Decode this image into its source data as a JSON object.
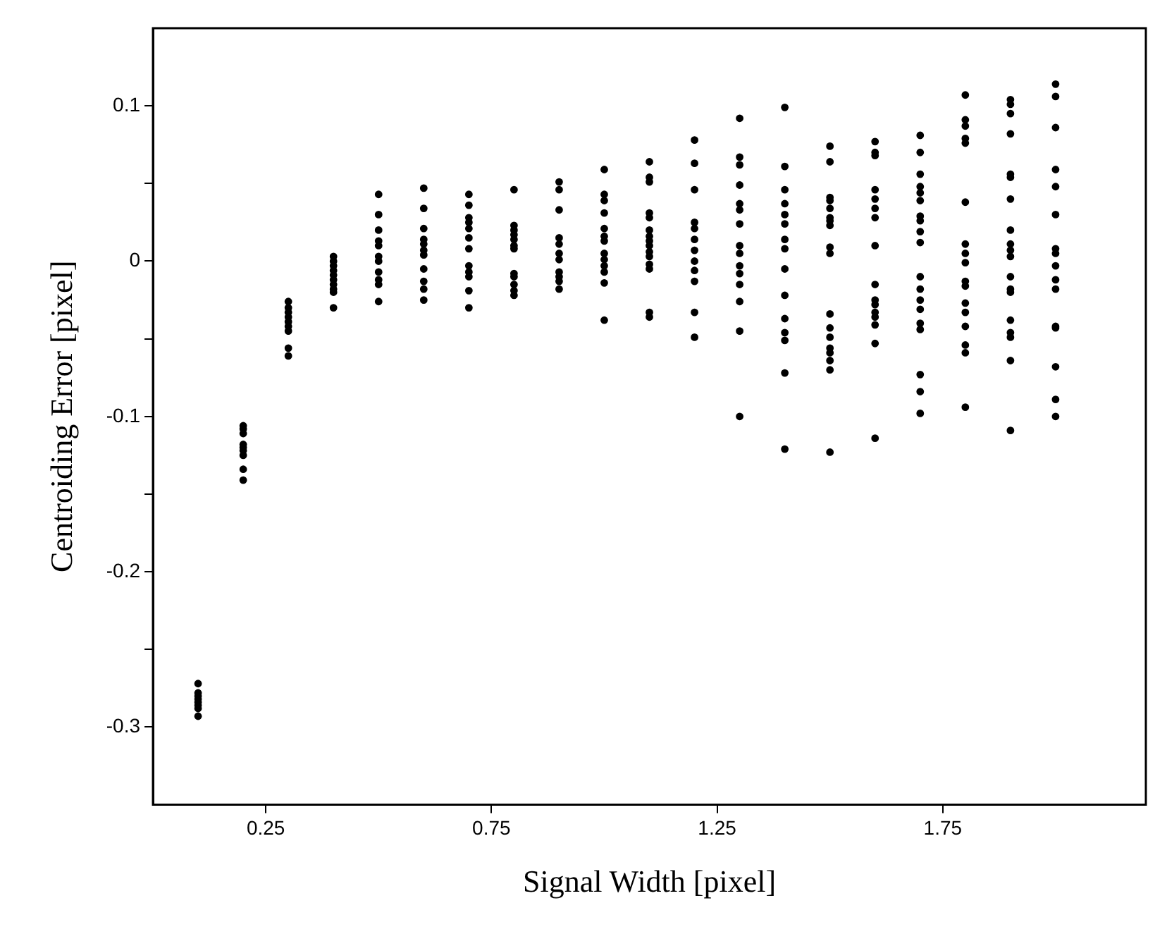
{
  "chart_data": {
    "type": "scatter",
    "xlabel": "Signal Width [pixel]",
    "ylabel": "Centroiding Error [pixel]",
    "xlim": [
      0,
      2.2
    ],
    "xticks": [
      0.25,
      0.75,
      1.25,
      1.75
    ],
    "ylim": [
      -0.35,
      0.15
    ],
    "yticks": [
      -0.3,
      {
        "value": -0.25,
        "label": null
      },
      -0.2,
      {
        "value": -0.15,
        "label": null
      },
      -0.1,
      {
        "value": -0.05,
        "label": null
      },
      0,
      {
        "value": 0.05,
        "label": null
      },
      0.1
    ],
    "grid": false,
    "legend": false,
    "marker": "circle",
    "series": [
      {
        "color": "#000000",
        "x": [
          0.1,
          0.1,
          0.1,
          0.1,
          0.1,
          0.1,
          0.1,
          0.1,
          0.2,
          0.2,
          0.2,
          0.2,
          0.2,
          0.2,
          0.2,
          0.2,
          0.2,
          0.3,
          0.3,
          0.3,
          0.3,
          0.3,
          0.3,
          0.3,
          0.3,
          0.3,
          0.4,
          0.4,
          0.4,
          0.4,
          0.4,
          0.4,
          0.4,
          0.4,
          0.4,
          0.4,
          0.5,
          0.5,
          0.5,
          0.5,
          0.5,
          0.5,
          0.5,
          0.5,
          0.5,
          0.5,
          0.5,
          0.6,
          0.6,
          0.6,
          0.6,
          0.6,
          0.6,
          0.6,
          0.6,
          0.6,
          0.6,
          0.6,
          0.7,
          0.7,
          0.7,
          0.7,
          0.7,
          0.7,
          0.7,
          0.7,
          0.7,
          0.7,
          0.7,
          0.7,
          0.8,
          0.8,
          0.8,
          0.8,
          0.8,
          0.8,
          0.8,
          0.8,
          0.8,
          0.8,
          0.8,
          0.8,
          0.9,
          0.9,
          0.9,
          0.9,
          0.9,
          0.9,
          0.9,
          0.9,
          0.9,
          0.9,
          0.9,
          1.0,
          1.0,
          1.0,
          1.0,
          1.0,
          1.0,
          1.0,
          1.0,
          1.0,
          1.0,
          1.0,
          1.0,
          1.0,
          1.1,
          1.1,
          1.1,
          1.1,
          1.1,
          1.1,
          1.1,
          1.1,
          1.1,
          1.1,
          1.1,
          1.1,
          1.1,
          1.1,
          1.1,
          1.2,
          1.2,
          1.2,
          1.2,
          1.2,
          1.2,
          1.2,
          1.2,
          1.2,
          1.2,
          1.2,
          1.2,
          1.3,
          1.3,
          1.3,
          1.3,
          1.3,
          1.3,
          1.3,
          1.3,
          1.3,
          1.3,
          1.3,
          1.3,
          1.3,
          1.3,
          1.3,
          1.4,
          1.4,
          1.4,
          1.4,
          1.4,
          1.4,
          1.4,
          1.4,
          1.4,
          1.4,
          1.4,
          1.4,
          1.4,
          1.4,
          1.4,
          1.5,
          1.5,
          1.5,
          1.5,
          1.5,
          1.5,
          1.5,
          1.5,
          1.5,
          1.5,
          1.5,
          1.5,
          1.5,
          1.5,
          1.5,
          1.5,
          1.5,
          1.5,
          1.6,
          1.6,
          1.6,
          1.6,
          1.6,
          1.6,
          1.6,
          1.6,
          1.6,
          1.6,
          1.6,
          1.6,
          1.6,
          1.6,
          1.6,
          1.6,
          1.7,
          1.7,
          1.7,
          1.7,
          1.7,
          1.7,
          1.7,
          1.7,
          1.7,
          1.7,
          1.7,
          1.7,
          1.7,
          1.7,
          1.7,
          1.7,
          1.7,
          1.7,
          1.7,
          1.8,
          1.8,
          1.8,
          1.8,
          1.8,
          1.8,
          1.8,
          1.8,
          1.8,
          1.8,
          1.8,
          1.8,
          1.8,
          1.8,
          1.8,
          1.8,
          1.8,
          1.9,
          1.9,
          1.9,
          1.9,
          1.9,
          1.9,
          1.9,
          1.9,
          1.9,
          1.9,
          1.9,
          1.9,
          1.9,
          1.9,
          1.9,
          1.9,
          1.9,
          1.9,
          1.9,
          2.0,
          2.0,
          2.0,
          2.0,
          2.0,
          2.0,
          2.0,
          2.0,
          2.0,
          2.0,
          2.0,
          2.0,
          2.0,
          2.0,
          2.0,
          2.0
        ],
        "values": [
          -0.272,
          -0.278,
          -0.28,
          -0.282,
          -0.284,
          -0.286,
          -0.288,
          -0.293,
          -0.106,
          -0.108,
          -0.111,
          -0.118,
          -0.12,
          -0.122,
          -0.125,
          -0.134,
          -0.141,
          -0.026,
          -0.03,
          -0.033,
          -0.036,
          -0.039,
          -0.042,
          -0.045,
          -0.056,
          -0.061,
          0.003,
          0,
          -0.003,
          -0.006,
          -0.009,
          -0.012,
          -0.015,
          -0.018,
          -0.02,
          -0.03,
          0.043,
          0.03,
          0.02,
          0.013,
          0.01,
          0.003,
          0,
          -0.007,
          -0.012,
          -0.015,
          -0.026,
          0.047,
          0.034,
          0.021,
          0.014,
          0.011,
          0.007,
          0.004,
          -0.005,
          -0.013,
          -0.018,
          -0.025,
          0.043,
          0.036,
          0.028,
          0.025,
          0.021,
          0.015,
          0.008,
          -0.003,
          -0.007,
          -0.01,
          -0.019,
          -0.03,
          0.046,
          0.023,
          0.02,
          0.017,
          0.014,
          0.01,
          0.008,
          -0.008,
          -0.01,
          -0.015,
          -0.019,
          -0.022,
          0.051,
          0.046,
          0.033,
          0.015,
          0.011,
          0.005,
          0.001,
          -0.007,
          -0.01,
          -0.013,
          -0.018,
          0.059,
          0.043,
          0.039,
          0.031,
          0.021,
          0.016,
          0.013,
          0.005,
          0.001,
          -0.003,
          -0.007,
          -0.014,
          -0.038,
          0.064,
          0.054,
          0.051,
          0.031,
          0.028,
          0.02,
          0.016,
          0.013,
          0.01,
          0.006,
          0.003,
          -0.002,
          -0.005,
          -0.033,
          -0.036,
          0.078,
          0.063,
          0.046,
          0.025,
          0.021,
          0.014,
          0.007,
          0,
          -0.006,
          -0.013,
          -0.033,
          -0.049,
          0.092,
          0.067,
          0.062,
          0.049,
          0.037,
          0.033,
          0.024,
          0.01,
          0.005,
          -0.003,
          -0.008,
          -0.015,
          -0.026,
          -0.045,
          -0.1,
          0.099,
          0.061,
          0.046,
          0.037,
          0.03,
          0.024,
          0.014,
          0.008,
          -0.005,
          -0.022,
          -0.037,
          -0.046,
          -0.051,
          -0.072,
          -0.121,
          0.074,
          0.064,
          0.041,
          0.039,
          0.034,
          0.028,
          0.026,
          0.023,
          0.009,
          0.005,
          -0.034,
          -0.043,
          -0.049,
          -0.056,
          -0.059,
          -0.064,
          -0.07,
          -0.123,
          0.077,
          0.07,
          0.068,
          0.046,
          0.04,
          0.034,
          0.028,
          0.01,
          -0.015,
          -0.025,
          -0.028,
          -0.033,
          -0.036,
          -0.041,
          -0.053,
          -0.114,
          0.081,
          0.07,
          0.056,
          0.048,
          0.044,
          0.039,
          0.029,
          0.026,
          0.019,
          0.012,
          -0.01,
          -0.018,
          -0.025,
          -0.031,
          -0.04,
          -0.044,
          -0.073,
          -0.084,
          -0.098,
          0.107,
          0.091,
          0.087,
          0.079,
          0.076,
          0.038,
          0.011,
          0.005,
          -0.001,
          -0.013,
          -0.016,
          -0.027,
          -0.033,
          -0.042,
          -0.054,
          -0.059,
          -0.094,
          0.104,
          0.101,
          0.095,
          0.082,
          0.056,
          0.054,
          0.04,
          0.02,
          0.011,
          0.007,
          0.003,
          -0.01,
          -0.018,
          -0.02,
          -0.038,
          -0.046,
          -0.049,
          -0.064,
          -0.109,
          0.114,
          0.106,
          0.086,
          0.059,
          0.048,
          0.03,
          0.008,
          0.005,
          -0.003,
          -0.012,
          -0.018,
          -0.042,
          -0.043,
          -0.068,
          -0.089,
          -0.1
        ]
      }
    ]
  }
}
